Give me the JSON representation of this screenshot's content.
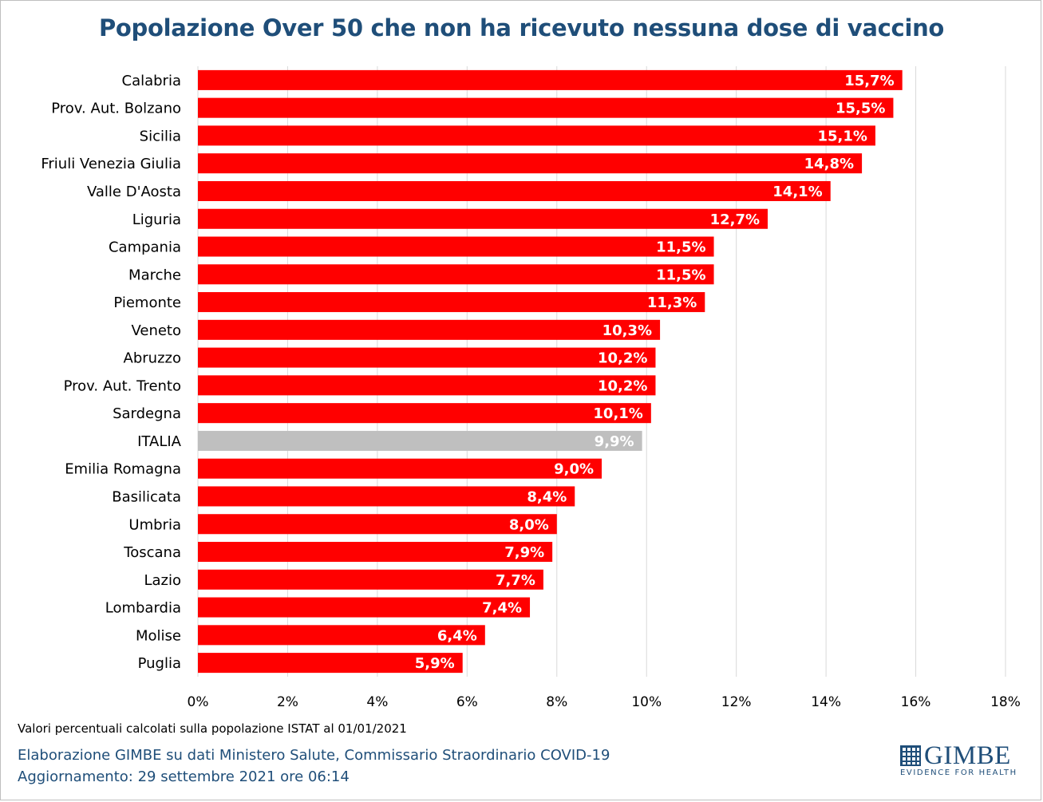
{
  "chart_data": {
    "type": "bar",
    "orientation": "horizontal",
    "title": "Popolazione Over 50 che non ha ricevuto nessuna dose di vaccino",
    "xlabel": "",
    "ylabel": "",
    "xlim": [
      0,
      18
    ],
    "x_ticks": [
      "0%",
      "2%",
      "4%",
      "6%",
      "8%",
      "10%",
      "12%",
      "14%",
      "16%",
      "18%"
    ],
    "grid": true,
    "categories": [
      "Calabria",
      "Prov. Aut. Bolzano",
      "Sicilia",
      "Friuli Venezia Giulia",
      "Valle D'Aosta",
      "Liguria",
      "Campania",
      "Marche",
      "Piemonte",
      "Veneto",
      "Abruzzo",
      "Prov. Aut. Trento",
      "Sardegna",
      "ITALIA",
      "Emilia Romagna",
      "Basilicata",
      "Umbria",
      "Toscana",
      "Lazio",
      "Lombardia",
      "Molise",
      "Puglia"
    ],
    "values": [
      15.7,
      15.5,
      15.1,
      14.8,
      14.1,
      12.7,
      11.5,
      11.5,
      11.3,
      10.3,
      10.2,
      10.2,
      10.1,
      9.9,
      9.0,
      8.4,
      8.0,
      7.9,
      7.7,
      7.4,
      6.4,
      5.9
    ],
    "data_labels": [
      "15,7%",
      "15,5%",
      "15,1%",
      "14,8%",
      "14,1%",
      "12,7%",
      "11,5%",
      "11,5%",
      "11,3%",
      "10,3%",
      "10,2%",
      "10,2%",
      "10,1%",
      "9,9%",
      "9,0%",
      "8,4%",
      "8,0%",
      "7,9%",
      "7,7%",
      "7,4%",
      "6,4%",
      "5,9%"
    ],
    "highlight_category": "ITALIA",
    "colors": {
      "bar": "#ff0000",
      "highlight": "#bfbfbf",
      "label": "#ffffff",
      "grid": "#d9d9d9"
    }
  },
  "footer": {
    "note": "Valori percentuali calcolati sulla popolazione ISTAT al 01/01/2021",
    "credit_line1": "Elaborazione GIMBE su dati Ministero Salute, Commissario Straordinario COVID-19",
    "credit_line2": "Aggiornamento: 29 settembre 2021 ore 06:14"
  },
  "logo": {
    "name": "GIMBE",
    "tagline": "EVIDENCE FOR HEALTH",
    "icon": "gimbe-grid-logo-icon",
    "color": "#1f4e79"
  }
}
